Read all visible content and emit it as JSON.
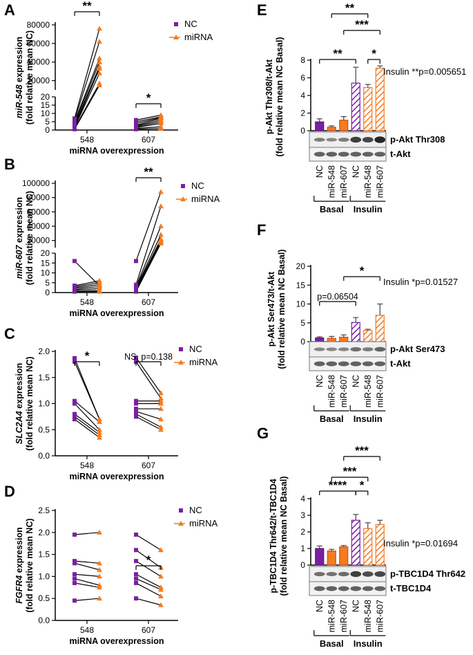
{
  "colors": {
    "nc": "#7a1fa2",
    "mirna": "#f47b20",
    "nc_dark": "#5a1687",
    "mirna_dark": "#c8561a",
    "axis": "#000000"
  },
  "chart_data": [
    {
      "id": "A",
      "panel_label": "A",
      "type": "scatter",
      "ylabel": [
        "miR-548 expression",
        "(fold relative mean NC)"
      ],
      "ylabel_parts": [
        [
          "miR-548",
          true
        ],
        [
          " expression",
          false
        ]
      ],
      "xlabel": "miRNA overexpression",
      "categories": [
        "548",
        "607"
      ],
      "ylim_low": [
        0,
        20
      ],
      "yticks_low": [
        0,
        5,
        10,
        15,
        20
      ],
      "ylim_high": [
        10000,
        80000
      ],
      "yticks_high": [
        20000,
        40000,
        60000,
        80000
      ],
      "legend": [
        "NC",
        "miRNA"
      ],
      "groups": [
        {
          "category": "548",
          "nc": [
            0.5,
            1,
            1.5,
            2,
            3,
            4,
            5,
            6,
            7
          ],
          "mirna": [
            15000,
            17000,
            28000,
            33000,
            35000,
            40000,
            44000,
            62000,
            76000
          ]
        },
        {
          "category": "607",
          "nc": [
            0.5,
            1,
            1.5,
            2,
            2.5,
            3,
            4,
            5,
            6
          ],
          "mirna": [
            1,
            2,
            4,
            5,
            6,
            7,
            7.5,
            8,
            9
          ]
        }
      ],
      "significance": [
        {
          "category": "548",
          "label": "**"
        },
        {
          "category": "607",
          "label": "*"
        }
      ]
    },
    {
      "id": "B",
      "panel_label": "B",
      "type": "scatter",
      "ylabel": [
        "miR-607 expression",
        "(fold relative mean NC)"
      ],
      "ylabel_parts": [
        [
          "miR-607",
          true
        ],
        [
          " expression",
          false
        ]
      ],
      "xlabel": "miRNA overexpression",
      "categories": [
        "548",
        "607"
      ],
      "ylim_low": [
        0,
        20
      ],
      "yticks_low": [
        0,
        5,
        10,
        15,
        20
      ],
      "ylim_high": [
        10000,
        100000
      ],
      "yticks_high": [
        20000,
        40000,
        60000,
        80000,
        100000
      ],
      "legend": [
        "NC",
        "miRNA"
      ],
      "groups": [
        {
          "category": "548",
          "nc": [
            0.5,
            1,
            1.5,
            2,
            2.5,
            3,
            3.5,
            16
          ],
          "mirna": [
            0.5,
            1,
            2,
            3,
            4,
            5,
            6,
            3.5
          ]
        },
        {
          "category": "607",
          "nc": [
            0.5,
            1,
            1.5,
            2,
            2.5,
            3,
            4,
            16
          ],
          "mirna": [
            16000,
            18000,
            20000,
            22000,
            28000,
            40000,
            68000,
            88000
          ]
        }
      ],
      "significance": [
        {
          "category": "607",
          "label": "**"
        }
      ]
    },
    {
      "id": "C",
      "panel_label": "C",
      "type": "scatter",
      "ylabel": [
        "SLC2A4 expression",
        "(fold relative mean NC)"
      ],
      "ylabel_parts": [
        [
          "SLC2A4",
          true
        ],
        [
          " expression",
          false
        ]
      ],
      "xlabel": "miRNA overexpression",
      "categories": [
        "548",
        "607"
      ],
      "ylim": [
        0,
        2.0
      ],
      "yticks": [
        0.0,
        0.5,
        1.0,
        1.5,
        2.0
      ],
      "legend": [
        "NC",
        "miRNA"
      ],
      "groups": [
        {
          "category": "548",
          "nc": [
            0.7,
            0.75,
            0.8,
            1.0,
            1.05,
            1.8,
            1.87
          ],
          "mirna": [
            0.35,
            0.4,
            0.45,
            0.5,
            0.65,
            0.7,
            0.7
          ]
        },
        {
          "category": "607",
          "nc": [
            0.75,
            0.8,
            0.85,
            0.9,
            1.0,
            1.05,
            1.8,
            1.88
          ],
          "mirna": [
            0.5,
            0.55,
            0.7,
            0.9,
            1.0,
            1.05,
            1.1,
            1.2
          ]
        }
      ],
      "significance": [
        {
          "category": "548",
          "label": "*"
        },
        {
          "category": "607",
          "label": "NS, p=0.138"
        }
      ]
    },
    {
      "id": "D",
      "panel_label": "D",
      "type": "scatter",
      "ylabel": [
        "FGFR4 expression",
        "(fold relative mean NC)"
      ],
      "ylabel_parts": [
        [
          "FGFR4",
          true
        ],
        [
          " expression",
          false
        ]
      ],
      "xlabel": "miRNA overexpression",
      "categories": [
        "548",
        "607"
      ],
      "ylim": [
        0,
        2.5
      ],
      "yticks": [
        0.0,
        0.5,
        1.0,
        1.5,
        2.0,
        2.5
      ],
      "legend": [
        "NC",
        "miRNA"
      ],
      "groups": [
        {
          "category": "548",
          "nc": [
            0.45,
            0.85,
            0.95,
            1.05,
            1.3,
            1.35,
            1.95
          ],
          "mirna": [
            0.5,
            0.75,
            0.8,
            1.0,
            1.15,
            1.3,
            2.0
          ]
        },
        {
          "category": "607",
          "nc": [
            0.5,
            0.85,
            0.95,
            1.05,
            1.35,
            1.6,
            1.95
          ],
          "mirna": [
            0.35,
            0.55,
            0.7,
            0.75,
            1.0,
            1.2,
            1.6
          ]
        }
      ],
      "significance": [
        {
          "category": "607",
          "label": "*"
        }
      ]
    },
    {
      "id": "E",
      "panel_label": "E",
      "type": "bar",
      "ylabel": [
        "p-Akt Thr308/t-Akt",
        "(fold relative mean NC Basal)"
      ],
      "ylim": [
        0,
        8
      ],
      "yticks": [
        0,
        2,
        4,
        6,
        8
      ],
      "categories": [
        "NC",
        "miR-548",
        "miR-607",
        "NC",
        "miR-548",
        "miR-607"
      ],
      "groups": [
        "Basal",
        "Insulin"
      ],
      "values": [
        1.0,
        0.4,
        1.2,
        5.4,
        4.9,
        7.1
      ],
      "errors": [
        0.35,
        0.15,
        0.4,
        1.8,
        0.35,
        0.25
      ],
      "annotation": "Insulin **p=0.005651",
      "blot_labels": [
        "p-Akt Thr308",
        "t-Akt"
      ],
      "brackets": [
        {
          "from": 1,
          "to": 4,
          "label": "**",
          "level": 0
        },
        {
          "from": 2,
          "to": 5,
          "label": "***",
          "level": 1
        },
        {
          "from": 0,
          "to": 3,
          "label": "**",
          "level": 2
        },
        {
          "from": 4,
          "to": 5,
          "label": "*",
          "level": 2
        }
      ]
    },
    {
      "id": "F",
      "panel_label": "F",
      "type": "bar",
      "ylabel": [
        "p-Akt Ser473/t-Akt",
        "(fold relative mean NC Basal)"
      ],
      "ylim": [
        0,
        20
      ],
      "yticks": [
        0,
        5,
        10,
        15,
        20
      ],
      "categories": [
        "NC",
        "miR-548",
        "miR-607",
        "NC",
        "miR-548",
        "miR-607"
      ],
      "groups": [
        "Basal",
        "Insulin"
      ],
      "values": [
        1.0,
        0.9,
        1.2,
        5.1,
        3.0,
        7.0
      ],
      "errors": [
        0.3,
        0.5,
        0.6,
        1.3,
        0.3,
        3.0
      ],
      "annotation": "Insulin *p=0.01527",
      "blot_labels": [
        "p-Akt Ser473",
        "t-Akt"
      ],
      "brackets": [
        {
          "from": 2,
          "to": 5,
          "label": "*",
          "level": 0
        },
        {
          "from": 0,
          "to": 3,
          "label": "p=0.06504",
          "level": 1
        }
      ]
    },
    {
      "id": "G",
      "panel_label": "G",
      "type": "bar",
      "ylabel": [
        "p-TBC1D4 Thr642/t-TBC1D4",
        "(fold relative mean NC Basal)"
      ],
      "ylim": [
        0,
        4
      ],
      "yticks": [
        0,
        1,
        2,
        3,
        4
      ],
      "categories": [
        "NC",
        "miR-548",
        "miR-607",
        "NC",
        "miR-548",
        "miR-607"
      ],
      "groups": [
        "Basal",
        "Insulin"
      ],
      "values": [
        1.0,
        0.85,
        1.1,
        2.7,
        2.2,
        2.45
      ],
      "errors": [
        0.15,
        0.1,
        0.08,
        0.35,
        0.35,
        0.25
      ],
      "annotation": "Insulin *p=0.01694",
      "blot_labels": [
        "p-TBC1D4 Thr642",
        "t-TBC1D4"
      ],
      "brackets": [
        {
          "from": 2,
          "to": 5,
          "label": "***",
          "level": 0
        },
        {
          "from": 1,
          "to": 4,
          "label": "***",
          "level": 1
        },
        {
          "from": 0,
          "to": 3,
          "label": "****",
          "level": 2
        },
        {
          "from": 3,
          "to": 4,
          "label": "*",
          "level": 2
        }
      ]
    }
  ]
}
